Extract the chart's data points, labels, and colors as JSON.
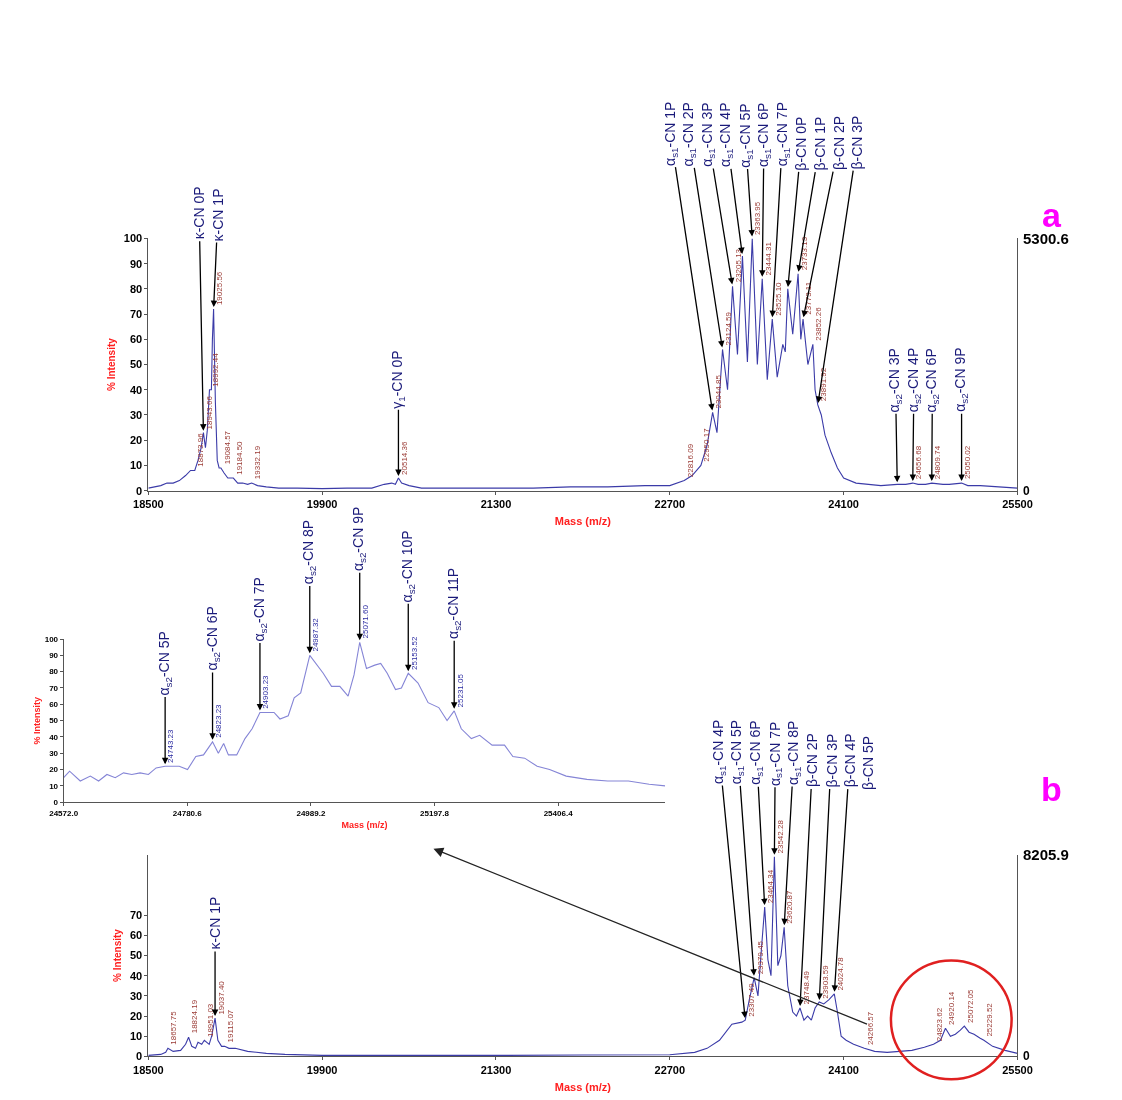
{
  "chart_data": [
    {
      "type": "line",
      "title": "a",
      "xlabel": "Mass (m/z)",
      "ylabel": "% Intensity",
      "xlim": [
        18500,
        25500
      ],
      "xticks": [
        18500,
        19900,
        21300,
        22700,
        24100,
        25500
      ],
      "ylim": [
        0,
        100
      ],
      "yticks": [
        0,
        10,
        20,
        30,
        40,
        50,
        60,
        70,
        80,
        90,
        100
      ],
      "series": [
        {
          "color": "#3b3ba8",
          "x": [
            18500,
            18550,
            18600,
            18650,
            18700,
            18750,
            18800,
            18840,
            18873.96,
            18900,
            18925,
            18943.66,
            18960,
            18975,
            18992.44,
            19008,
            19016,
            19025.56,
            19040,
            19055,
            19070,
            19084.57,
            19110,
            19140,
            19184.5,
            19220,
            19260,
            19300,
            19332.19,
            19380,
            19450,
            19550,
            19700,
            19900,
            20100,
            20300,
            20400,
            20460,
            20490,
            20514.36,
            20540,
            20600,
            20700,
            21000,
            21300,
            21600,
            21900,
            22200,
            22500,
            22700,
            22816.09,
            22880,
            22950.17,
            23000,
            23044.85,
            23080,
            23124.59,
            23165,
            23205.13,
            23245,
            23285,
            23325,
            23363.95,
            23405,
            23444.31,
            23485,
            23525.1,
            23565,
            23610,
            23630,
            23650,
            23690,
            23733.13,
            23755,
            23773.11,
            23812,
            23852.26,
            23870,
            23891.92,
            23920,
            23950,
            24000,
            24050,
            24100,
            24200,
            24300,
            24400,
            24532,
            24600,
            24656.68,
            24700,
            24760,
            24809.74,
            24900,
            24950,
            25050.02,
            25100,
            25200,
            25350,
            25500
          ],
          "values": [
            1,
            1.5,
            2,
            3,
            3,
            4,
            6,
            8,
            8,
            12,
            17,
            23,
            17,
            24,
            40,
            40,
            60,
            72,
            35,
            12,
            9,
            9,
            7,
            5,
            5,
            3,
            3,
            2.5,
            3,
            2,
            1.5,
            1,
            1,
            0.8,
            1,
            1,
            2.5,
            3,
            2.5,
            5,
            3,
            2,
            1,
            1,
            1,
            1,
            1.5,
            1.5,
            2,
            2,
            4,
            6,
            10,
            18,
            31,
            23,
            56,
            40,
            81,
            54,
            93,
            51,
            100,
            50,
            84,
            44,
            68,
            45,
            58,
            55,
            80,
            62,
            86,
            60,
            68,
            50,
            58,
            40,
            34,
            30,
            22,
            15,
            9,
            5,
            3,
            2.5,
            2,
            2.5,
            2.5,
            3,
            2.5,
            2.5,
            3,
            2.5,
            2.5,
            3,
            2,
            2,
            1.5,
            1
          ]
        }
      ],
      "annotations": [
        "5300.6",
        "0",
        {
          "text": "18873.96",
          "x": 18873.96,
          "y": 8
        },
        {
          "text": "18943.66",
          "x": 18943.66,
          "y": 23
        },
        {
          "text": "18992.44",
          "x": 18992.44,
          "y": 40
        },
        {
          "text": "19025.56",
          "x": 19025.56,
          "y": 72
        },
        {
          "text": "19084.57",
          "x": 19084.57,
          "y": 9
        },
        {
          "text": "19184.50",
          "x": 19184.5,
          "y": 5
        },
        {
          "text": "19332.19",
          "x": 19332.19,
          "y": 3
        },
        {
          "text": "20514.36",
          "x": 20514.36,
          "y": 5
        },
        {
          "text": "22816.09",
          "x": 22816.09,
          "y": 4
        },
        {
          "text": "22950.17",
          "x": 22950.17,
          "y": 10
        },
        {
          "text": "23044.85",
          "x": 23044.85,
          "y": 31
        },
        {
          "text": "23124.59",
          "x": 23124.59,
          "y": 56
        },
        {
          "text": "23205.13",
          "x": 23205.13,
          "y": 81
        },
        {
          "text": "23363.95",
          "x": 23363.95,
          "y": 100
        },
        {
          "text": "23444.31",
          "x": 23444.31,
          "y": 84
        },
        {
          "text": "23525.10",
          "x": 23525.1,
          "y": 68
        },
        {
          "text": "23733.13",
          "x": 23733.13,
          "y": 86
        },
        {
          "text": "23773.11",
          "x": 23773.11,
          "y": 68
        },
        {
          "text": "23852.26",
          "x": 23852.26,
          "y": 58
        },
        {
          "text": "23891.92",
          "x": 23891.92,
          "y": 34
        },
        {
          "text": "24656.68",
          "x": 24656.68,
          "y": 3
        },
        {
          "text": "24809.74",
          "x": 24809.74,
          "y": 3
        },
        {
          "text": "25050.02",
          "x": 25050.02,
          "y": 3
        },
        {
          "text": "κ-CN 0P",
          "x": 18943.66,
          "y": 23
        },
        {
          "text": "κ-CN 1P",
          "x": 19025.56,
          "y": 72
        },
        {
          "text": "γ$_{1}$-CN 0P",
          "x": 20514.36,
          "y": 5
        },
        {
          "text": "α$_{s1}$-CN 1P",
          "x": 23044.85,
          "y": 31
        },
        {
          "text": "α$_{s1}$-CN 2P",
          "x": 23124.59,
          "y": 56
        },
        {
          "text": "α$_{s1}$-CN 3P",
          "x": 23205.13,
          "y": 81
        },
        {
          "text": "α$_{s1}$-CN 4P",
          "x": 23285,
          "y": 93
        },
        {
          "text": "α$_{s1}$-CN 5P",
          "x": 23363.95,
          "y": 100
        },
        {
          "text": "α$_{s1}$-CN 6P",
          "x": 23444.31,
          "y": 84
        },
        {
          "text": "α$_{s1}$-CN 7P",
          "x": 23525.1,
          "y": 68
        },
        {
          "text": "β-CN 0P",
          "x": 23650,
          "y": 80
        },
        {
          "text": "β-CN 1P",
          "x": 23733.13,
          "y": 86
        },
        {
          "text": "β-CN 2P",
          "x": 23773.11,
          "y": 68
        },
        {
          "text": "β-CN 3P",
          "x": 23891.92,
          "y": 34
        },
        {
          "text": "α$_{s2}$-CN 3P",
          "x": 24532,
          "y": 2.5
        },
        {
          "text": "α$_{s2}$-CN 4P",
          "x": 24656.68,
          "y": 3
        },
        {
          "text": "α$_{s2}$-CN 6P",
          "x": 24809.74,
          "y": 3
        },
        {
          "text": "α$_{s2}$-CN 9P",
          "x": 25050.02,
          "y": 3
        }
      ]
    },
    {
      "type": "line",
      "xlabel": "Mass (m/z)",
      "ylabel": "% Intensity",
      "xlim": [
        24572.0,
        25587
      ],
      "xticks": [
        {
          "value": 24572.0,
          "label": "24572.0"
        },
        {
          "value": 24780.6,
          "label": "24780.6"
        },
        {
          "value": 24989.2,
          "label": "24989.2"
        },
        {
          "value": 25197.8,
          "label": "25197.8"
        },
        {
          "value": 25406.4,
          "label": "25406.4"
        }
      ],
      "ylim": [
        0,
        100
      ],
      "yticks": [
        0,
        10,
        20,
        30,
        40,
        50,
        60,
        70,
        80,
        90,
        100
      ],
      "series": [
        {
          "color": "#8585d6",
          "x": [
            24572,
            24582,
            24600,
            24617,
            24631,
            24645,
            24659,
            24673,
            24687,
            24701,
            24715,
            24728,
            24743.23,
            24767,
            24781,
            24795,
            24808,
            24823.23,
            24833,
            24842,
            24850,
            24864,
            24878,
            24890,
            24903.23,
            24927,
            24937,
            24951,
            24961,
            24972,
            24987.32,
            25010,
            25024,
            25038,
            25052,
            25062,
            25071.6,
            25083,
            25097,
            25107,
            25118,
            25132,
            25142,
            25153.52,
            25170,
            25187,
            25205,
            25219,
            25231.05,
            25243,
            25260,
            25274,
            25295,
            25316,
            25330,
            25350,
            25371,
            25392,
            25420,
            25455,
            25490,
            25525,
            25560,
            25587
          ],
          "values": [
            15,
            19,
            13,
            16,
            13,
            17,
            15,
            18,
            17,
            18,
            17,
            21,
            22,
            22,
            20,
            28,
            29,
            37,
            30,
            36,
            29,
            29,
            39,
            45,
            55,
            55,
            51,
            53,
            64,
            67,
            90,
            79,
            71,
            71,
            65,
            78,
            98,
            82,
            84,
            85,
            79,
            69,
            70,
            79,
            73,
            61,
            58,
            50,
            56,
            45,
            39,
            41,
            35,
            35,
            28,
            27,
            22,
            20,
            16,
            14,
            13,
            13,
            11,
            10
          ]
        }
      ],
      "annotations": [
        {
          "text": "24743.23",
          "x": 24743.23,
          "y": 22
        },
        {
          "text": "24823.23",
          "x": 24823.23,
          "y": 37
        },
        {
          "text": "24903.23",
          "x": 24903.23,
          "y": 55
        },
        {
          "text": "24987.32",
          "x": 24987.32,
          "y": 90
        },
        {
          "text": "25071.60",
          "x": 25071.6,
          "y": 98
        },
        {
          "text": "25153.52",
          "x": 25153.52,
          "y": 79
        },
        {
          "text": "25231.05",
          "x": 25231.05,
          "y": 56
        },
        {
          "text": "α$_{s2}$-CN 5P",
          "x": 24743.23,
          "y": 22
        },
        {
          "text": "α$_{s2}$-CN 6P",
          "x": 24823.23,
          "y": 37
        },
        {
          "text": "α$_{s2}$-CN 7P",
          "x": 24903.23,
          "y": 55
        },
        {
          "text": "α$_{s2}$-CN 8P",
          "x": 24987.32,
          "y": 90
        },
        {
          "text": "α$_{s2}$-CN 9P",
          "x": 25071.6,
          "y": 98
        },
        {
          "text": "α$_{s2}$-CN 10P",
          "x": 25153.52,
          "y": 79
        },
        {
          "text": "α$_{s2}$-CN 11P",
          "x": 25231.05,
          "y": 56
        }
      ]
    },
    {
      "type": "line",
      "title": "b",
      "xlabel": "Mass (m/z)",
      "ylabel": "% Intensity",
      "xlim": [
        18500,
        25500
      ],
      "xticks": [
        18500,
        19900,
        21300,
        22700,
        24100,
        25500
      ],
      "ylim": [
        0,
        100
      ],
      "yticks": [
        0,
        10,
        20,
        30,
        40,
        50,
        60,
        70
      ],
      "series": [
        {
          "color": "#3b3ba8",
          "x": [
            18500,
            18600,
            18640,
            18657.75,
            18700,
            18760,
            18800,
            18824.19,
            18850,
            18880,
            18900,
            18930,
            18951.03,
            18990,
            19010,
            19037.4,
            19060,
            19090,
            19115.07,
            19150,
            19200,
            19300,
            19450,
            19600,
            19900,
            20500,
            21300,
            22000,
            22700,
            22900,
            23000,
            23100,
            23200,
            23280,
            23307.49,
            23340,
            23379.45,
            23410,
            23440,
            23464.34,
            23490,
            23515,
            23542.28,
            23570,
            23595,
            23620.87,
            23650,
            23690,
            23720,
            23748.49,
            23780,
            23810,
            23840,
            23870,
            23903.59,
            23940,
            23980,
            24024.78,
            24050,
            24080,
            24120,
            24180,
            24266.57,
            24350,
            24450,
            24550,
            24650,
            24750,
            24823.62,
            24880,
            24920.14,
            24960,
            25000,
            25040,
            25072.05,
            25110,
            25150,
            25200,
            25229.52,
            25300,
            25400,
            25500
          ],
          "values": [
            0.5,
            1,
            2,
            4,
            2.5,
            3,
            6,
            9.5,
            5,
            4,
            7,
            6,
            8,
            6,
            10,
            19,
            8,
            5,
            5,
            4,
            4,
            2.5,
            1.5,
            1,
            0.5,
            0.5,
            0.5,
            0.7,
            0.8,
            2,
            4,
            8,
            16,
            17,
            18,
            28,
            39,
            30,
            55,
            74,
            48,
            40,
            99,
            45,
            50,
            64,
            35,
            22,
            20,
            24,
            18,
            20,
            18,
            24,
            27,
            26,
            28,
            31,
            22,
            10,
            8,
            6,
            4,
            2.5,
            2,
            2.5,
            3,
            4.5,
            6,
            8,
            14,
            10,
            11,
            13,
            15,
            12,
            11,
            9,
            8,
            5,
            3,
            1.5
          ]
        }
      ],
      "annotations": [
        "8205.9",
        "0",
        {
          "text": "18657.75",
          "x": 18657.75,
          "y": 4
        },
        {
          "text": "18824.19",
          "x": 18824.19,
          "y": 9.5
        },
        {
          "text": "18951.03",
          "x": 18951.03,
          "y": 8
        },
        {
          "text": "19037.40",
          "x": 19037.4,
          "y": 19
        },
        {
          "text": "19115.07",
          "x": 19115.07,
          "y": 5
        },
        {
          "text": "23307.49",
          "x": 23307.49,
          "y": 18
        },
        {
          "text": "23379.45",
          "x": 23379.45,
          "y": 39
        },
        {
          "text": "23464.34",
          "x": 23464.34,
          "y": 74
        },
        {
          "text": "23542.28",
          "x": 23542.28,
          "y": 99
        },
        {
          "text": "23620.87",
          "x": 23620.87,
          "y": 64
        },
        {
          "text": "23748.49",
          "x": 23748.49,
          "y": 24
        },
        {
          "text": "23903.59",
          "x": 23903.59,
          "y": 27
        },
        {
          "text": "24024.78",
          "x": 24024.78,
          "y": 31
        },
        {
          "text": "24266.57",
          "x": 24266.57,
          "y": 4
        },
        {
          "text": "24823.62",
          "x": 24823.62,
          "y": 6
        },
        {
          "text": "24920.14",
          "x": 24920.14,
          "y": 14
        },
        {
          "text": "25072.05",
          "x": 25072.05,
          "y": 15
        },
        {
          "text": "25229.52",
          "x": 25229.52,
          "y": 8
        },
        {
          "text": "κ-CN 1P",
          "x": 19037.4,
          "y": 19
        },
        {
          "text": "α$_{s1}$-CN 4P",
          "x": 23307.49,
          "y": 18
        },
        {
          "text": "α$_{s1}$-CN 5P",
          "x": 23379.45,
          "y": 39
        },
        {
          "text": "α$_{s1}$-CN 6P",
          "x": 23464.34,
          "y": 74
        },
        {
          "text": "α$_{s1}$-CN 7P",
          "x": 23542.28,
          "y": 99
        },
        {
          "text": "α$_{s1}$-CN 8P",
          "x": 23620.87,
          "y": 64
        },
        {
          "text": "β-CN 2P",
          "x": 23748.49,
          "y": 24
        },
        {
          "text": "β-CN 3P",
          "x": 23903.59,
          "y": 27
        },
        {
          "text": "β-CN 4P",
          "x": 24024.78,
          "y": 31
        },
        "β-CN 5P"
      ]
    }
  ]
}
